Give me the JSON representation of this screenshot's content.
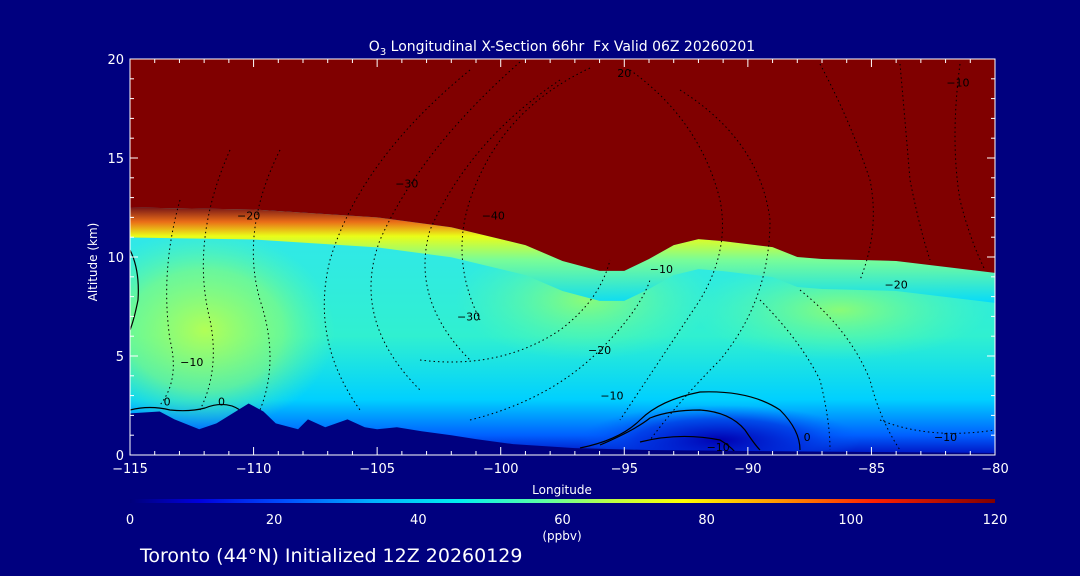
{
  "colors": {
    "background": "#00007f",
    "axis": "#ffffff",
    "contour": "#000000",
    "stratosphere": "#800000"
  },
  "chart_data": {
    "type": "heatmap",
    "title_prefix": "O",
    "title_sub": "3",
    "title_rest": " Longitudinal X-Section 66hr  Fx Valid 06Z 20260201",
    "xlabel": "Longitude",
    "ylabel": "Altitude (km)",
    "xlim": [
      -115,
      -80
    ],
    "ylim": [
      0,
      20
    ],
    "x_ticks": [
      -115,
      -110,
      -105,
      -100,
      -95,
      -90,
      -85,
      -80
    ],
    "x_tick_labels": [
      "−115",
      "−110",
      "−105",
      "−100",
      "−95",
      "−90",
      "−85",
      "−80"
    ],
    "y_ticks": [
      0,
      5,
      10,
      15,
      20
    ],
    "y_tick_labels": [
      "0",
      "5",
      "10",
      "15",
      "20"
    ],
    "colorbar": {
      "label": "(ppbv)",
      "min": 0,
      "max": 120,
      "ticks": [
        0,
        20,
        40,
        60,
        80,
        100,
        120
      ],
      "tick_labels": [
        "0",
        "20",
        "40",
        "60",
        "80",
        "100",
        "120"
      ]
    },
    "tropopause": {
      "lon": [
        -115,
        -110,
        -105,
        -102,
        -99,
        -97.5,
        -96,
        -95,
        -94,
        -93,
        -92,
        -91,
        -89,
        -88,
        -87,
        -84,
        -80
      ],
      "alt": [
        12.5,
        12.4,
        12.0,
        11.5,
        10.6,
        9.8,
        9.3,
        9.3,
        9.9,
        10.6,
        10.9,
        10.8,
        10.5,
        10.0,
        9.9,
        9.8,
        9.2
      ]
    },
    "terrain": {
      "lon": [
        -115,
        -113.8,
        -113.2,
        -112.2,
        -111.5,
        -110.2,
        -109.6,
        -109.1,
        -108.2,
        -107.8,
        -107.1,
        -106.2,
        -105.5,
        -105.0,
        -104.2,
        -103.2,
        -102.0,
        -101.0,
        -99.5,
        -97.0,
        -94.0,
        -90.0,
        -85.0,
        -80.0
      ],
      "alt": [
        2.1,
        2.2,
        1.8,
        1.3,
        1.6,
        2.6,
        2.2,
        1.6,
        1.3,
        1.8,
        1.4,
        1.8,
        1.4,
        1.3,
        1.4,
        1.2,
        1.0,
        0.8,
        0.55,
        0.35,
        0.25,
        0.2,
        0.15,
        0.1
      ]
    },
    "contour_labels": [
      {
        "text": "20",
        "lon": -95,
        "alt": 19.1
      },
      {
        "text": "−10",
        "lon": -81.5,
        "alt": 18.6
      },
      {
        "text": "−30",
        "lon": -103.8,
        "alt": 13.5
      },
      {
        "text": "−40",
        "lon": -100.3,
        "alt": 11.9
      },
      {
        "text": "−20",
        "lon": -110.2,
        "alt": 11.9
      },
      {
        "text": "−10",
        "lon": -93.5,
        "alt": 9.2
      },
      {
        "text": "−20",
        "lon": -84.0,
        "alt": 8.4
      },
      {
        "text": "−30",
        "lon": -101.3,
        "alt": 6.8
      },
      {
        "text": "−20",
        "lon": -96.0,
        "alt": 5.1
      },
      {
        "text": "−10",
        "lon": -112.5,
        "alt": 4.5
      },
      {
        "text": "−10",
        "lon": -95.5,
        "alt": 2.8
      },
      {
        "text": "0",
        "lon": -113.5,
        "alt": 2.5
      },
      {
        "text": "0",
        "lon": -111.3,
        "alt": 2.5
      },
      {
        "text": "0",
        "lon": -87.6,
        "alt": 0.7
      },
      {
        "text": "−10",
        "lon": -82.0,
        "alt": 0.7
      },
      {
        "text": "−10",
        "lon": -91.2,
        "alt": 0.2
      }
    ]
  },
  "footer": "Toronto (44°N) Initialized 12Z 20260129"
}
